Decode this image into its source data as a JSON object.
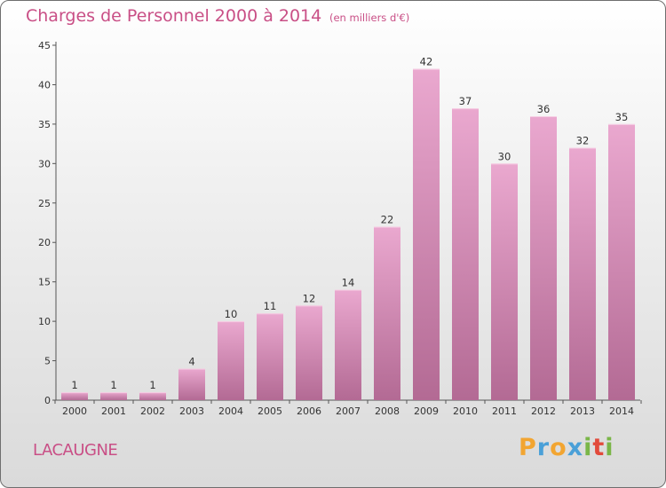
{
  "title": "Charges de Personnel 2000 à 2014",
  "subtitle": "(en milliers d'€)",
  "commune": "LACAUGNE",
  "logo": {
    "text": "Proxiti",
    "letters": [
      "P",
      "r",
      "o",
      "x",
      "i",
      "t",
      "i"
    ],
    "colors": [
      "#f2a531",
      "#4aa0d8",
      "#f2a531",
      "#4aa0d8",
      "#7ab648",
      "#e24a3b",
      "#7ab648"
    ]
  },
  "colors": {
    "bar_light": "#eaa8cf",
    "bar_dark": "#b36a94",
    "text_accent": "#c94f86"
  },
  "chart_data": {
    "type": "bar",
    "title": "Charges de Personnel 2000 à 2014",
    "subtitle": "(en milliers d'€)",
    "categories": [
      "2000",
      "2001",
      "2002",
      "2003",
      "2004",
      "2005",
      "2006",
      "2007",
      "2008",
      "2009",
      "2010",
      "2011",
      "2012",
      "2013",
      "2014"
    ],
    "values": [
      1,
      1,
      1,
      4,
      10,
      11,
      12,
      14,
      22,
      42,
      37,
      30,
      36,
      32,
      35
    ],
    "xlabel": "",
    "ylabel": "",
    "ylim": [
      0,
      45
    ],
    "yticks": [
      0,
      5,
      10,
      15,
      20,
      25,
      30,
      35,
      40,
      45
    ],
    "grid": false,
    "legend": "none"
  }
}
